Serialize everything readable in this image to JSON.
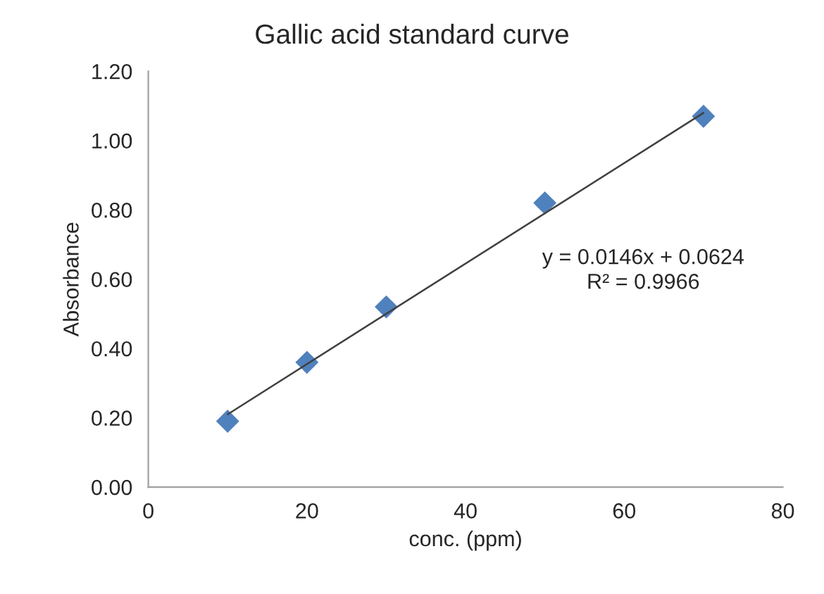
{
  "chart_data": {
    "type": "scatter",
    "title": "Gallic acid standard curve",
    "xlabel": "conc. (ppm)",
    "ylabel": "Absorbance",
    "series": [
      {
        "color": "#4f81bd",
        "marker": "diamond",
        "x": [
          10,
          20,
          30,
          50,
          70
        ],
        "values": [
          0.19,
          0.36,
          0.52,
          0.82,
          1.07
        ]
      },
      {
        "type": "line",
        "color": "#404040",
        "marker": "none",
        "line_style": "solid",
        "x": [
          10,
          70
        ],
        "values": [
          0.21,
          1.08
        ]
      }
    ],
    "annotations": [
      "y = 0.0146x + 0.0624\nR² = 0.9966"
    ],
    "xlim": [
      0,
      80
    ],
    "xticks": [
      0,
      20,
      40,
      60,
      80
    ],
    "ylim": [
      0,
      1.2
    ],
    "yticks": [
      {
        "value": 0,
        "label": "0.00"
      },
      {
        "value": 0.2,
        "label": "0.20"
      },
      {
        "value": 0.4,
        "label": "0.40"
      },
      {
        "value": 0.6,
        "label": "0.60"
      },
      {
        "value": 0.8,
        "label": "0.80"
      },
      {
        "value": 1.0,
        "label": "1.00"
      },
      {
        "value": 1.2,
        "label": "1.20"
      }
    ],
    "grid": false,
    "legend": false
  }
}
